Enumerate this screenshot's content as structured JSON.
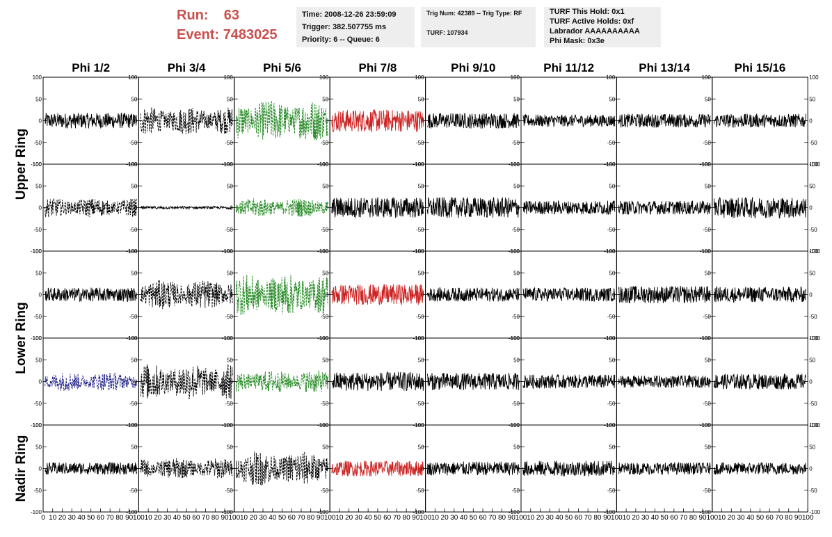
{
  "header": {
    "run_label": "Run:",
    "run_value": "63",
    "event_label": "Event:",
    "event_value": "7483025",
    "box1": [
      "Time: 2008-12-26 23:59:09",
      "Trigger: 382.507755 ms",
      "Priority: 6 -- Queue: 6"
    ],
    "box2": [
      "Trig Num: 42389 -- Trig Type: RF",
      "",
      "TURF: 107934"
    ],
    "box3": [
      "TURF This Hold: 0x1",
      "TURF Active Holds: 0xf",
      "Labrador AAAAAAAAAA",
      "Phi Mask: 0x3e"
    ]
  },
  "colors": {
    "red_trace": "#cc2222",
    "green_trace": "#228822",
    "blue_trace": "#222288",
    "black_trace": "#000000",
    "title_red": "#c8504e"
  },
  "chart_data": {
    "type": "line",
    "columns": [
      "Phi 1/2",
      "Phi 3/4",
      "Phi 5/6",
      "Phi 7/8",
      "Phi 9/10",
      "Phi 11/12",
      "Phi 13/14",
      "Phi 15/16"
    ],
    "ring_labels": [
      "Upper Ring",
      "Lower Ring",
      "Nadir Ring"
    ],
    "rows": 5,
    "xlim": [
      0,
      100
    ],
    "ylim": [
      -100,
      100
    ],
    "xticks": [
      "0",
      "10",
      "20",
      "30",
      "40",
      "50",
      "60",
      "70",
      "80",
      "90",
      "100"
    ],
    "yticks": [
      "100",
      "50",
      "0",
      "-50",
      "-100"
    ],
    "grid": false,
    "panel_styles": [
      [
        "black",
        "black-dashed",
        "green-dashed",
        "red",
        "black",
        "black",
        "black",
        "black"
      ],
      [
        "black-dashed",
        "black-flat",
        "green-dashed",
        "black",
        "black",
        "black",
        "black",
        "black"
      ],
      [
        "black",
        "black-dashed",
        "green-dashed",
        "red",
        "black",
        "black",
        "black",
        "black"
      ],
      [
        "blue-dashed",
        "black-dashed",
        "green-dashed",
        "black",
        "black",
        "black",
        "black",
        "black"
      ],
      [
        "black",
        "black-dashed",
        "black-dashed",
        "red",
        "black",
        "black",
        "black",
        "black"
      ]
    ],
    "panel_amplitudes": [
      [
        18,
        32,
        48,
        26,
        18,
        14,
        16,
        16
      ],
      [
        22,
        3,
        22,
        24,
        24,
        16,
        16,
        24
      ],
      [
        16,
        34,
        48,
        24,
        16,
        16,
        20,
        18
      ],
      [
        22,
        42,
        26,
        22,
        20,
        16,
        14,
        18
      ],
      [
        14,
        24,
        40,
        18,
        16,
        18,
        14,
        14
      ]
    ]
  }
}
